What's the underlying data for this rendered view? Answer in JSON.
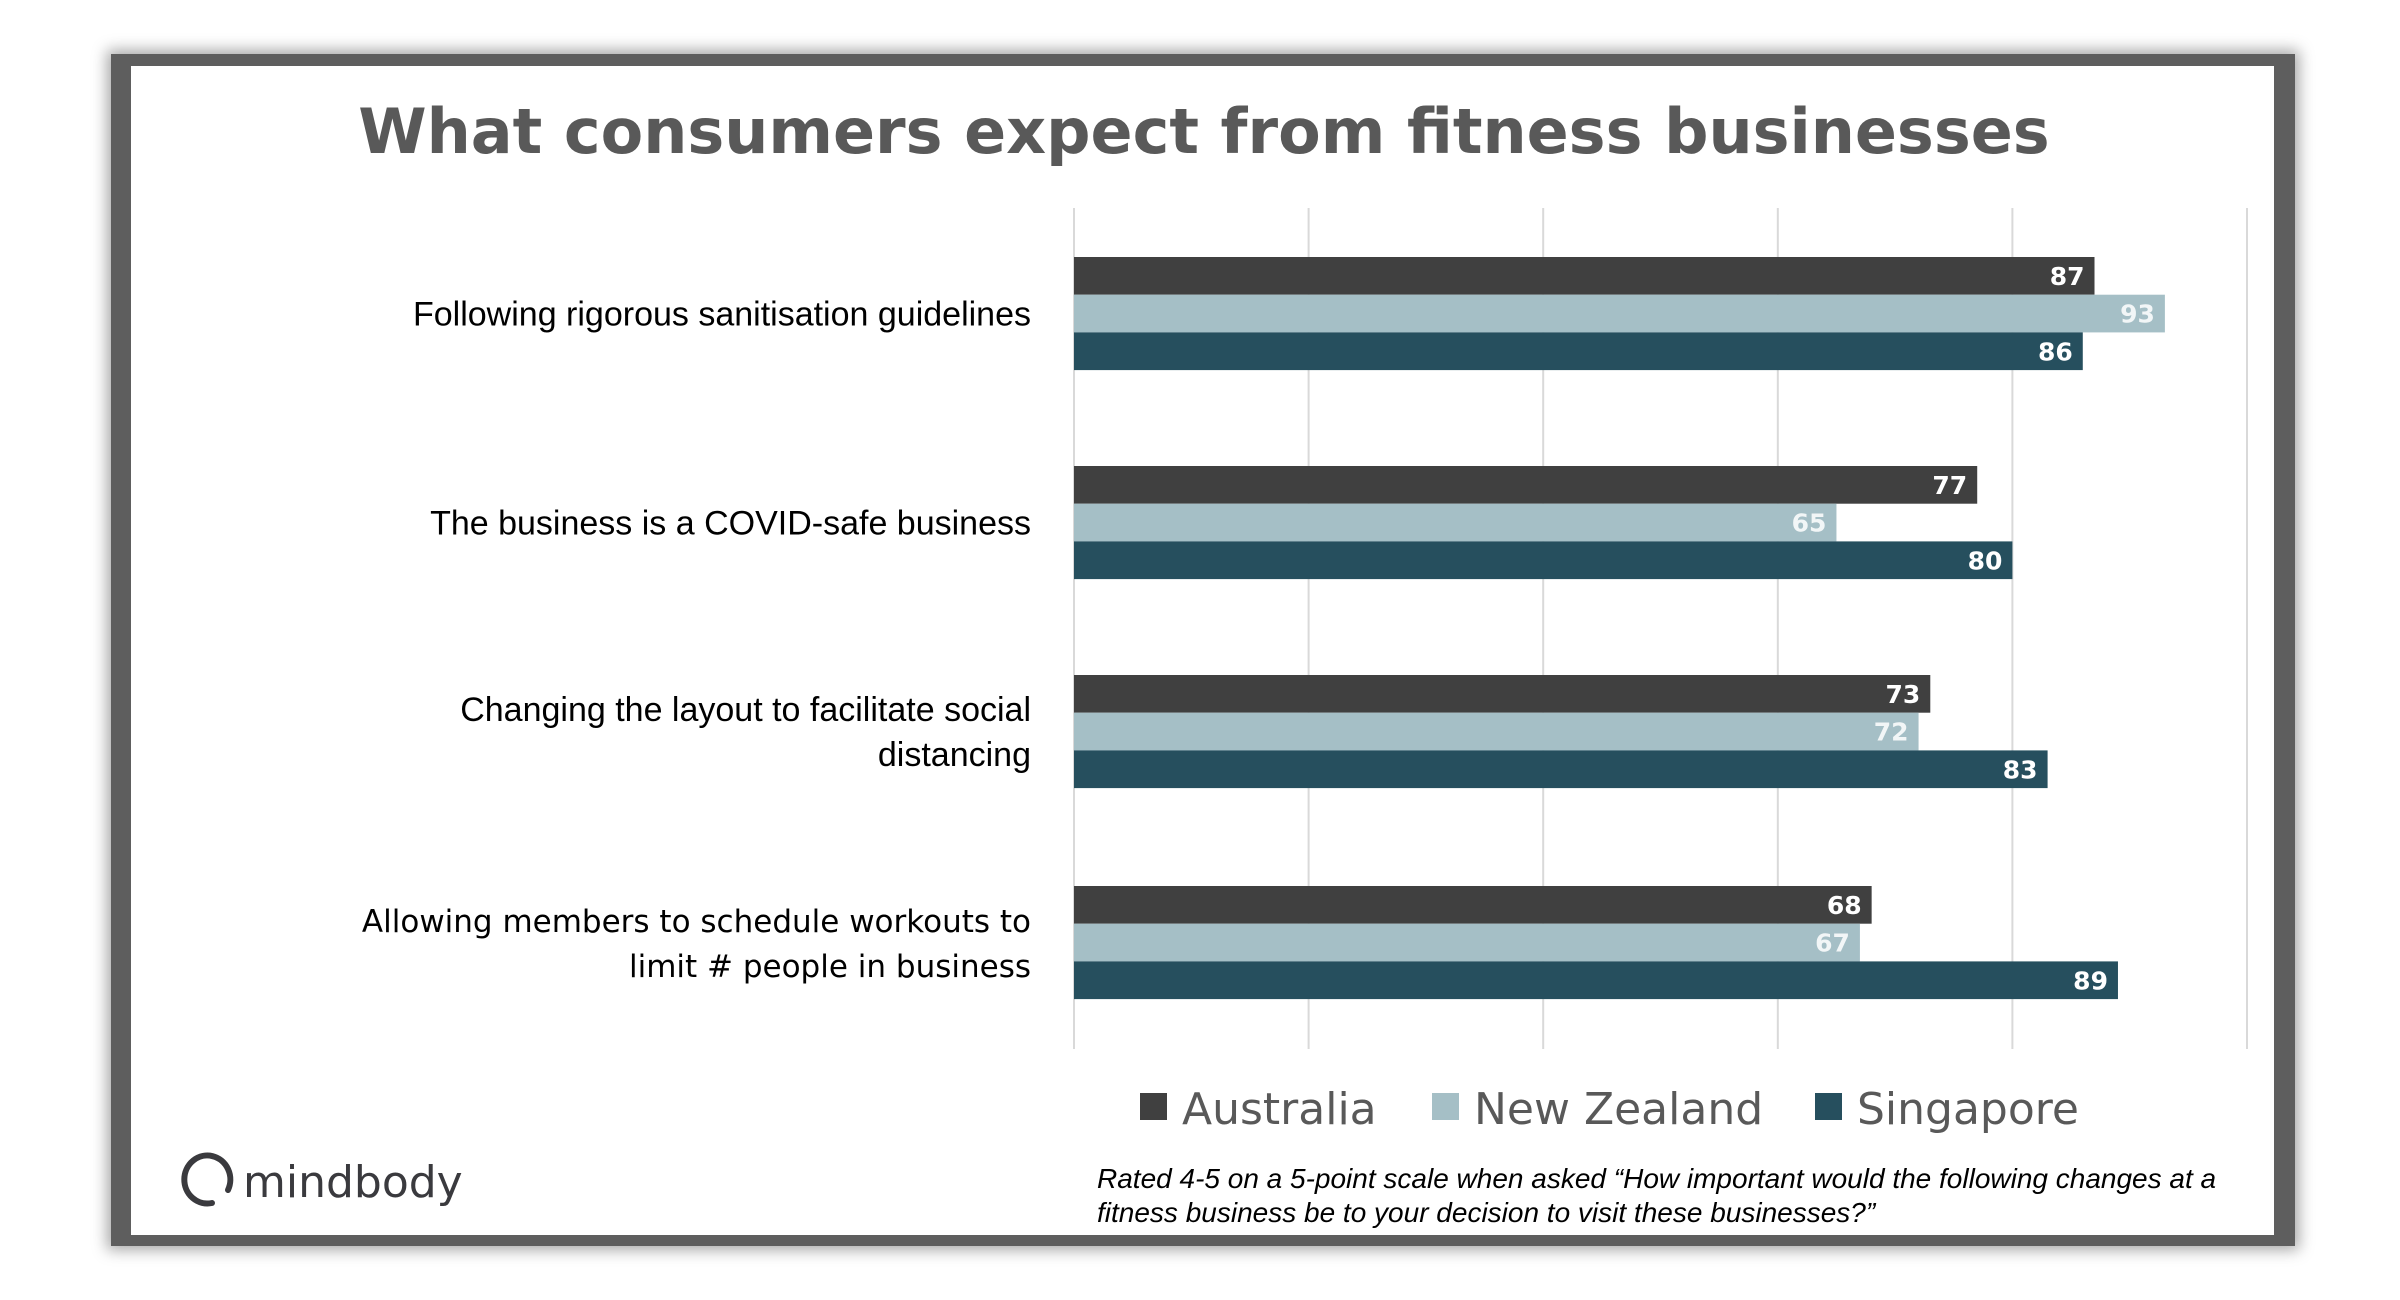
{
  "chart_data": {
    "type": "bar",
    "orientation": "horizontal",
    "title": "What consumers expect from fitness businesses",
    "categories": [
      [
        "Following rigorous sanitisation guidelines"
      ],
      [
        "The business is a COVID-safe business"
      ],
      [
        "Changing the layout to facilitate social",
        "distancing"
      ],
      [
        "Allowing members to schedule workouts to",
        "limit # people in business"
      ]
    ],
    "series": [
      {
        "name": "Australia",
        "color": "#404040",
        "label_color": "#ffffff",
        "values": [
          87,
          77,
          73,
          68
        ]
      },
      {
        "name": "New Zealand",
        "color": "#a5bfc6",
        "label_color": "#f2f6f7",
        "values": [
          93,
          65,
          72,
          67
        ]
      },
      {
        "name": "Singapore",
        "color": "#264f5e",
        "label_color": "#ffffff",
        "values": [
          86,
          80,
          83,
          89
        ]
      }
    ],
    "xlim": [
      0,
      100
    ],
    "x_gridlines": [
      0,
      20,
      40,
      60,
      80,
      100
    ],
    "x_tick_labels_shown": false,
    "grid": true,
    "data_labels": true,
    "legend_position": "bottom"
  },
  "footnote": [
    "Rated 4-5 on a 5-point scale when asked “How important would the following changes at a",
    "fitness business be to your decision to visit these businesses?”"
  ],
  "logo": {
    "text": "mindbody"
  }
}
